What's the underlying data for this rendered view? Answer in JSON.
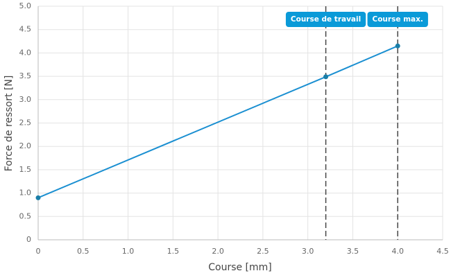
{
  "chart_data": {
    "type": "line",
    "x_label": "Course [mm]",
    "y_label": "Force de ressort [N]",
    "x": [
      0,
      3.2,
      4.0
    ],
    "values": [
      0.9,
      3.49,
      4.15
    ],
    "color": "#1a8fd1",
    "marker_color": "#1a7ea8",
    "xlim": [
      0,
      4.5
    ],
    "ylim": [
      0,
      5
    ],
    "xticks": [
      0,
      0.5,
      {
        "value": 1,
        "label": "1.0"
      },
      1.5,
      {
        "value": 2,
        "label": "2.0"
      },
      2.5,
      {
        "value": 3,
        "label": "3.0"
      },
      3.5,
      {
        "value": 4,
        "label": "4.0"
      },
      4.5
    ],
    "yticks": [
      0,
      0.5,
      {
        "value": 1,
        "label": "1.0"
      },
      1.5,
      {
        "value": 2,
        "label": "2.0"
      },
      2.5,
      {
        "value": 3,
        "label": "3.0"
      },
      3.5,
      {
        "value": 4,
        "label": "4.0"
      },
      4.5,
      {
        "value": 5,
        "label": "5.0"
      }
    ],
    "grid": true,
    "annotations": [
      {
        "x": 3.2,
        "label": "Course de travail"
      },
      {
        "x": 4.0,
        "label": "Course max."
      }
    ],
    "annotation_color": "#0a9ad8"
  }
}
